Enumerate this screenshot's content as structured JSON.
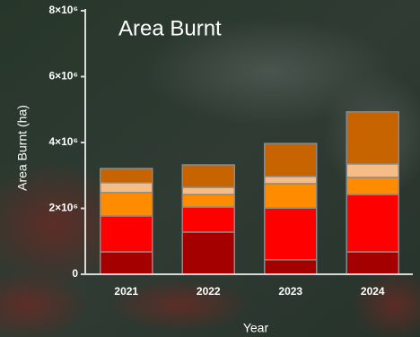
{
  "chart_data": {
    "type": "stacked_bar",
    "title": "Area Burnt",
    "x_label": "Year",
    "y_label": "Area Burnt (ha)",
    "categories": [
      "2021",
      "2022",
      "2023",
      "2024"
    ],
    "series": [
      {
        "color": "#a40000",
        "values": [
          680000,
          1280000,
          440000,
          680000
        ]
      },
      {
        "color": "#ff0000",
        "values": [
          1090000,
          760000,
          1570000,
          1740000
        ]
      },
      {
        "color": "#ff8c00",
        "values": [
          710000,
          380000,
          740000,
          520000
        ]
      },
      {
        "color": "#f5bd85",
        "values": [
          300000,
          220000,
          220000,
          410000
        ]
      },
      {
        "color": "#c86400",
        "values": [
          430000,
          680000,
          1000000,
          1580000
        ]
      }
    ],
    "ylim": [
      0,
      8000000
    ],
    "yticks": [
      0,
      {
        "value": 2000000,
        "label": "2×10⁶"
      },
      {
        "value": 4000000,
        "label": "4×10⁶"
      },
      {
        "value": 6000000,
        "label": "6×10⁶"
      },
      {
        "value": 8000000,
        "label": "8×10⁶"
      }
    ]
  }
}
